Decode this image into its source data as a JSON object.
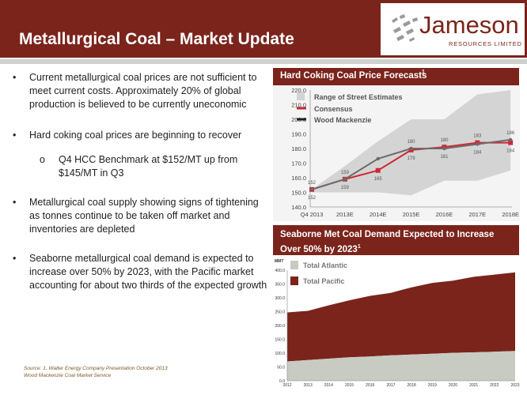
{
  "header": {
    "title": "Metallurgical Coal – Market Update",
    "logo_name": "Jameson",
    "logo_subtitle": "RESOURCES LIMITED",
    "colors": {
      "brand": "#7b241c",
      "rule": "#cfcfcf"
    }
  },
  "bullets": [
    {
      "text": "Current metallurgical coal prices are not sufficient to meet current costs.  Approximately 20% of global production is believed to be currently uneconomic",
      "level": 1
    },
    {
      "text": "Hard coking coal prices are beginning to recover",
      "level": 1
    },
    {
      "text": "Q4 HCC Benchmark at $152/MT up from $145/MT in Q3",
      "level": 2
    },
    {
      "text": "Metallurgical coal supply showing signs of tightening as tonnes continue to be taken off market and inventories are depleted",
      "level": 1
    },
    {
      "text": "Seaborne metallurgical coal demand is expected to increase over 50% by 2023, with the Pacific market accounting for about two thirds of the expected growth",
      "level": 1
    }
  ],
  "bullet_symbols": {
    "level1": "•",
    "level2": "o"
  },
  "source": {
    "line1": "Source: 1. Walter Energy Company Presentation October 2013",
    "line2": "Wood Mackenzie Coal Market Service"
  },
  "chart_data": [
    {
      "type": "line",
      "title": "Hard Coking Coal Price Forecasts",
      "title_superscript": "1",
      "categories": [
        "Q4 2013",
        "2013E",
        "2014E",
        "2015E",
        "2016E",
        "2017E",
        "2018E"
      ],
      "ylim": [
        140,
        220
      ],
      "yticks": [
        "140.0",
        "150.0",
        "160.0",
        "170.0",
        "180.0",
        "190.0",
        "200.0",
        "210.0",
        "220.0"
      ],
      "range": {
        "name": "Range of Street Estimates",
        "low": [
          150,
          150,
          150,
          148,
          158,
          158,
          165
        ],
        "high": [
          152,
          168,
          185,
          200,
          200,
          217,
          220
        ]
      },
      "series": [
        {
          "name": "Consensus",
          "color": "#cc2a36",
          "values": [
            152,
            159,
            165,
            179,
            181,
            184,
            184
          ]
        },
        {
          "name": "Wood Mackenzie",
          "color": "#6b6b6b",
          "values": [
            152,
            159,
            173,
            180,
            180,
            183,
            186
          ]
        }
      ],
      "data_labels": {
        "upper": [
          "152",
          "159",
          "",
          "180",
          "180",
          "183",
          "186"
        ],
        "lower": [
          "152",
          "159",
          "165",
          "179",
          "181",
          "184",
          "184"
        ]
      },
      "legend_position": "top-left",
      "grid": false,
      "colors": {
        "range": "#d4d4d4"
      }
    },
    {
      "type": "area",
      "title": "Seaborne Met Coal Demand Expected to Increase Over 50% by 2023",
      "title_superscript": "1",
      "unit": "MMT",
      "x": [
        "2012",
        "2013",
        "2014",
        "2015",
        "2016",
        "2017",
        "2018",
        "2019",
        "2020",
        "2021",
        "2022",
        "2023"
      ],
      "ylim": [
        0,
        400
      ],
      "yticks": [
        "0.0",
        "50.0",
        "100.0",
        "150.0",
        "200.0",
        "250.0",
        "300.0",
        "350.0",
        "400.0"
      ],
      "series": [
        {
          "name": "Total Atlantic",
          "color": "#c7cbc1",
          "values": [
            70,
            75,
            80,
            85,
            88,
            92,
            95,
            98,
            101,
            103,
            105,
            108
          ]
        },
        {
          "name": "Total Pacific",
          "color": "#7b241c",
          "values": [
            177,
            178,
            193,
            206,
            219,
            226,
            243,
            256,
            261,
            273,
            279,
            284
          ]
        }
      ],
      "stacked": true,
      "legend_position": "top-left",
      "grid": false
    }
  ]
}
